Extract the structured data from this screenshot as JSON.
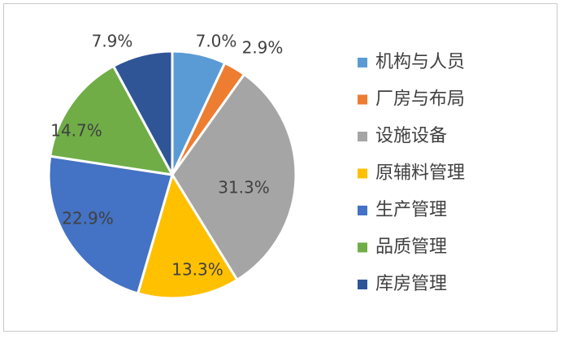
{
  "chart_data": {
    "type": "pie",
    "title": "",
    "legend_position": "right",
    "slices": [
      {
        "name": "机构与人员",
        "value": 7.0,
        "label": "7.0%",
        "color": "#5B9BD5"
      },
      {
        "name": "厂房与布局",
        "value": 2.9,
        "label": "2.9%",
        "color": "#ED7D31"
      },
      {
        "name": "设施设备",
        "value": 31.3,
        "label": "31.3%",
        "color": "#A5A5A5"
      },
      {
        "name": "原辅料管理",
        "value": 13.3,
        "label": "13.3%",
        "color": "#FFC000"
      },
      {
        "name": "生产管理",
        "value": 22.9,
        "label": "22.9%",
        "color": "#4472C4"
      },
      {
        "name": "品质管理",
        "value": 14.7,
        "label": "14.7%",
        "color": "#70AD47"
      },
      {
        "name": "库房管理",
        "value": 7.9,
        "label": "7.9%",
        "color": "#2F5597"
      }
    ]
  }
}
